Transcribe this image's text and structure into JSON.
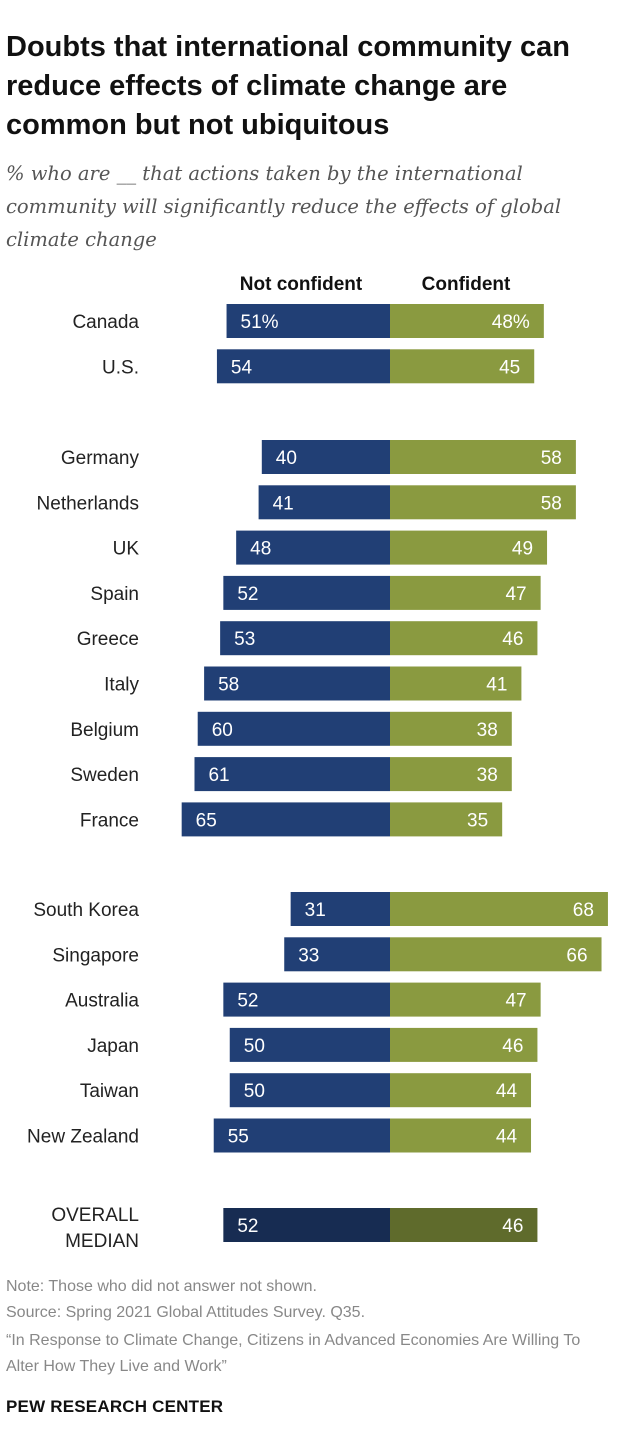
{
  "title": "Doubts that international community can reduce effects of climate change are common but not ubiquitous",
  "subtitle": "% who are __ that actions taken by the international community will significantly reduce the effects of global climate change",
  "chart_data": {
    "type": "bar",
    "orientation": "horizontal-diverging",
    "series": [
      {
        "name": "Not confident",
        "color": "#213f75"
      },
      {
        "name": "Confident",
        "color": "#8a9a40"
      }
    ],
    "median_colors": {
      "Not confident": "#172c52",
      "Confident": "#5f6b2c"
    },
    "groups": [
      {
        "rows": [
          {
            "label": "Canada",
            "not_confident": 51,
            "confident": 48,
            "nc_text": "51%",
            "c_text": "48%"
          },
          {
            "label": "U.S.",
            "not_confident": 54,
            "confident": 45,
            "nc_text": "54",
            "c_text": "45"
          }
        ]
      },
      {
        "rows": [
          {
            "label": "Germany",
            "not_confident": 40,
            "confident": 58,
            "nc_text": "40",
            "c_text": "58"
          },
          {
            "label": "Netherlands",
            "not_confident": 41,
            "confident": 58,
            "nc_text": "41",
            "c_text": "58"
          },
          {
            "label": "UK",
            "not_confident": 48,
            "confident": 49,
            "nc_text": "48",
            "c_text": "49"
          },
          {
            "label": "Spain",
            "not_confident": 52,
            "confident": 47,
            "nc_text": "52",
            "c_text": "47"
          },
          {
            "label": "Greece",
            "not_confident": 53,
            "confident": 46,
            "nc_text": "53",
            "c_text": "46"
          },
          {
            "label": "Italy",
            "not_confident": 58,
            "confident": 41,
            "nc_text": "58",
            "c_text": "41"
          },
          {
            "label": "Belgium",
            "not_confident": 60,
            "confident": 38,
            "nc_text": "60",
            "c_text": "38"
          },
          {
            "label": "Sweden",
            "not_confident": 61,
            "confident": 38,
            "nc_text": "61",
            "c_text": "38"
          },
          {
            "label": "France",
            "not_confident": 65,
            "confident": 35,
            "nc_text": "65",
            "c_text": "35"
          }
        ]
      },
      {
        "rows": [
          {
            "label": "South Korea",
            "not_confident": 31,
            "confident": 68,
            "nc_text": "31",
            "c_text": "68"
          },
          {
            "label": "Singapore",
            "not_confident": 33,
            "confident": 66,
            "nc_text": "33",
            "c_text": "66"
          },
          {
            "label": "Australia",
            "not_confident": 52,
            "confident": 47,
            "nc_text": "52",
            "c_text": "47"
          },
          {
            "label": "Japan",
            "not_confident": 50,
            "confident": 46,
            "nc_text": "50",
            "c_text": "46"
          },
          {
            "label": "Taiwan",
            "not_confident": 50,
            "confident": 44,
            "nc_text": "50",
            "c_text": "44"
          },
          {
            "label": "New Zealand",
            "not_confident": 55,
            "confident": 44,
            "nc_text": "55",
            "c_text": "44"
          }
        ]
      },
      {
        "median": true,
        "rows": [
          {
            "label": "OVERALL MEDIAN",
            "label_lines": [
              "OVERALL",
              "MEDIAN"
            ],
            "not_confident": 52,
            "confident": 46,
            "nc_text": "52",
            "c_text": "46"
          }
        ]
      }
    ]
  },
  "notes": {
    "note": "Note: Those who did not answer not shown.",
    "source": "Source: Spring 2021 Global Attitudes Survey. Q35.",
    "report_title": "“In Response to Climate Change, Citizens in Advanced Economies Are Willing To Alter How They Live and Work”"
  },
  "footer": {
    "logo": "PEW RESEARCH CENTER"
  }
}
